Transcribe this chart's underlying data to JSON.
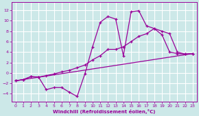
{
  "xlabel": "Windchill (Refroidissement éolien,°C)",
  "bg_color": "#cce8e8",
  "grid_color": "#ffffff",
  "line_color": "#990099",
  "xlim": [
    -0.5,
    23.5
  ],
  "ylim": [
    -5.5,
    13.5
  ],
  "xticks": [
    0,
    1,
    2,
    3,
    4,
    5,
    6,
    7,
    8,
    9,
    10,
    11,
    12,
    13,
    14,
    15,
    16,
    17,
    18,
    19,
    20,
    21,
    22,
    23
  ],
  "yticks": [
    -4,
    -2,
    0,
    2,
    4,
    6,
    8,
    10,
    12
  ],
  "curve1_x": [
    0,
    1,
    2,
    3,
    4,
    5,
    6,
    7,
    8,
    9,
    10,
    11,
    12,
    13,
    14,
    15,
    16,
    17,
    18,
    19,
    20,
    21,
    22,
    23
  ],
  "curve1_y": [
    -1.5,
    -1.3,
    -0.7,
    -0.8,
    -3.2,
    -2.8,
    -2.8,
    -3.7,
    -4.5,
    -0.2,
    5.0,
    9.7,
    10.8,
    10.3,
    3.3,
    11.7,
    11.9,
    9.0,
    8.5,
    7.3,
    4.0,
    3.7,
    3.6,
    3.7
  ],
  "line_x": [
    0,
    23
  ],
  "line_y": [
    -1.5,
    3.7
  ],
  "curve2_x": [
    0,
    1,
    2,
    3,
    4,
    5,
    6,
    7,
    8,
    9,
    10,
    11,
    12,
    13,
    14,
    15,
    16,
    17,
    18,
    19,
    20,
    21,
    22,
    23
  ],
  "curve2_y": [
    -1.5,
    -1.3,
    -0.7,
    -0.8,
    -0.5,
    -0.2,
    0.2,
    0.5,
    1.0,
    1.5,
    2.5,
    3.3,
    4.5,
    4.5,
    5.0,
    6.0,
    7.0,
    7.5,
    8.5,
    8.0,
    7.5,
    4.0,
    3.6,
    3.7
  ]
}
